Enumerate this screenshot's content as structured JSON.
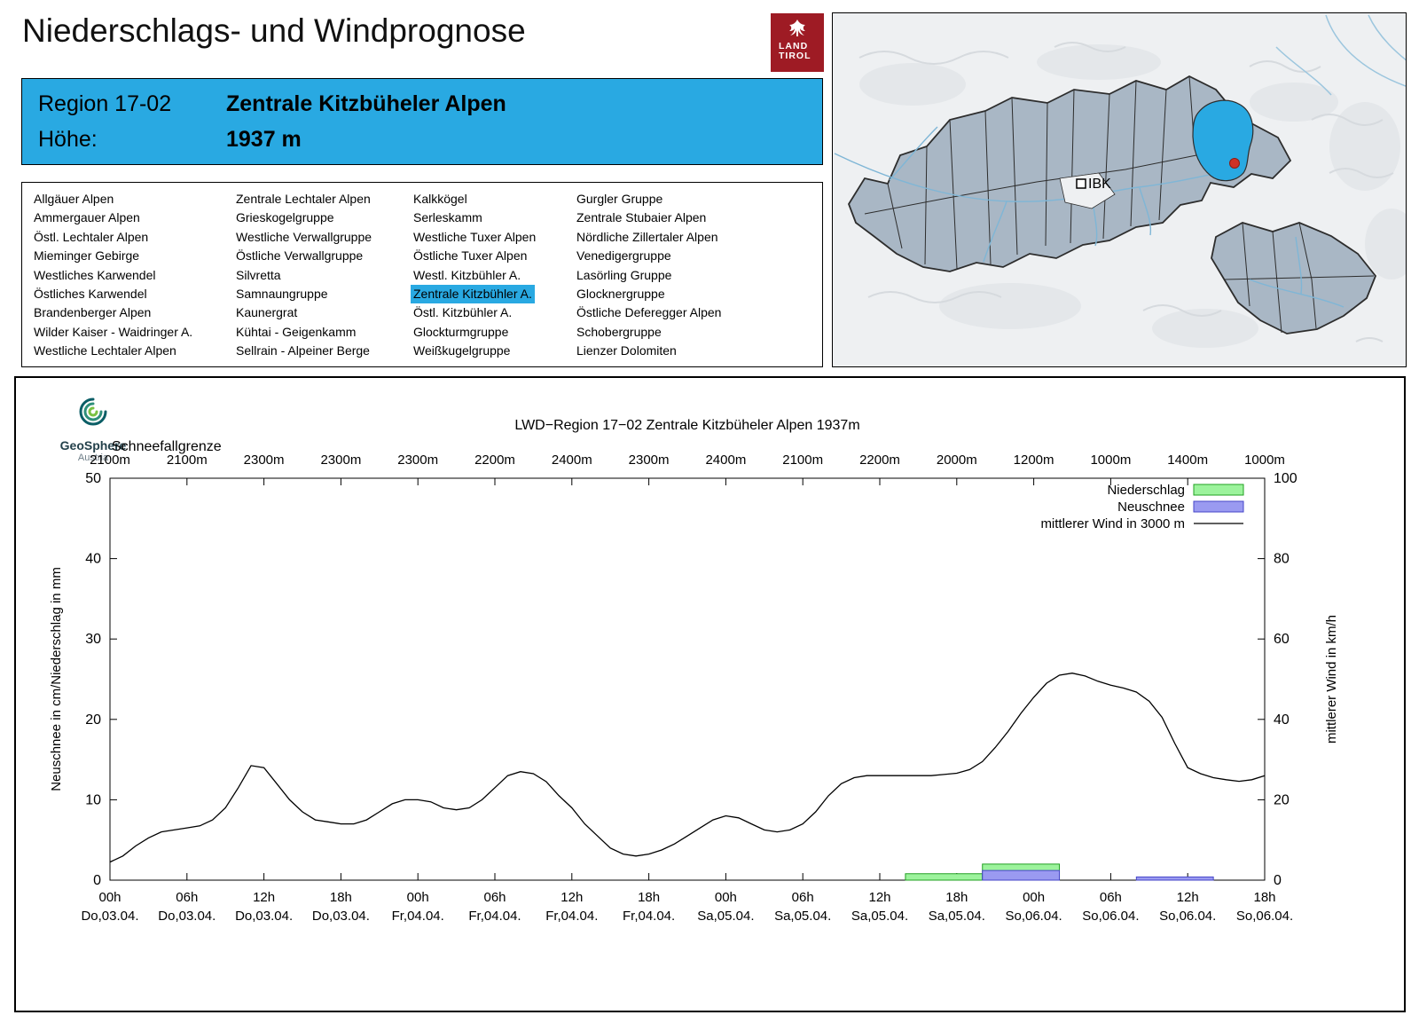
{
  "page": {
    "title": "Niederschlags- und Windprognose"
  },
  "logo": {
    "line1": "LAND",
    "line2": "TIROL"
  },
  "colors": {
    "accent": "#29a9e2",
    "logo_red": "#9e1b24",
    "map_region_fill": "#a9b7c5",
    "map_border": "#2d2d2d",
    "river": "#7fb6d6"
  },
  "region_header": {
    "region_label": "Region 17-02",
    "region_name": "Zentrale Kitzbüheler Alpen",
    "altitude_label": "Höhe:",
    "altitude_value": "1937 m"
  },
  "region_list": {
    "selected": "Zentrale Kitzbühler A.",
    "columns": [
      [
        "Allgäuer Alpen",
        "Ammergauer Alpen",
        "Östl. Lechtaler Alpen",
        "Mieminger Gebirge",
        "Westliches Karwendel",
        "Östliches Karwendel",
        "Brandenberger Alpen",
        "Wilder Kaiser - Waidringer A.",
        "Westliche Lechtaler Alpen"
      ],
      [
        "Zentrale Lechtaler Alpen",
        "Grieskogelgruppe",
        "Westliche Verwallgruppe",
        "Östliche Verwallgruppe",
        "Silvretta",
        "Samnaungruppe",
        "Kaunergrat",
        "Kühtai - Geigenkamm",
        "Sellrain - Alpeiner Berge"
      ],
      [
        "Kalkkögel",
        "Serleskamm",
        "Westliche Tuxer Alpen",
        "Östliche Tuxer Alpen",
        "Westl. Kitzbühler A.",
        "Zentrale Kitzbühler A.",
        "Östl. Kitzbühler A.",
        "Glockturmgruppe",
        "Weißkugelgruppe"
      ],
      [
        "Gurgler Gruppe",
        "Zentrale Stubaier Alpen",
        "Nördliche Zillertaler Alpen",
        "Venedigergruppe",
        "Lasörling Gruppe",
        "Glocknergruppe",
        "Östliche Deferegger Alpen",
        "Schobergruppe",
        "Lienzer Dolomiten"
      ]
    ]
  },
  "map": {
    "city_label": "IBK"
  },
  "geosphere": {
    "name": "GeoSphere",
    "sub": "Austria"
  },
  "chart_data": {
    "type": "line+bars",
    "title": "LWD−Region 17−02 Zentrale Kitzbüheler Alpen 1937m",
    "axes": {
      "ylabel_left": "Neuschnee in cm/Niederschlag in mm",
      "ylabel_right": "mittlerer Wind in km/h",
      "ylim_left": [
        0,
        50
      ],
      "yticks_left": [
        0,
        10,
        20,
        30,
        40,
        50
      ],
      "ylim_right": [
        0,
        100
      ],
      "yticks_right": [
        0,
        20,
        40,
        60,
        80,
        100
      ],
      "xlim_hours": [
        0,
        90
      ]
    },
    "xticks": [
      {
        "hour": 0,
        "time": "00h",
        "date": "Do,03.04."
      },
      {
        "hour": 6,
        "time": "06h",
        "date": "Do,03.04."
      },
      {
        "hour": 12,
        "time": "12h",
        "date": "Do,03.04."
      },
      {
        "hour": 18,
        "time": "18h",
        "date": "Do,03.04."
      },
      {
        "hour": 24,
        "time": "00h",
        "date": "Fr,04.04."
      },
      {
        "hour": 30,
        "time": "06h",
        "date": "Fr,04.04."
      },
      {
        "hour": 36,
        "time": "12h",
        "date": "Fr,04.04."
      },
      {
        "hour": 42,
        "time": "18h",
        "date": "Fr,04.04."
      },
      {
        "hour": 48,
        "time": "00h",
        "date": "Sa,05.04."
      },
      {
        "hour": 54,
        "time": "06h",
        "date": "Sa,05.04."
      },
      {
        "hour": 60,
        "time": "12h",
        "date": "Sa,05.04."
      },
      {
        "hour": 66,
        "time": "18h",
        "date": "Sa,05.04."
      },
      {
        "hour": 72,
        "time": "00h",
        "date": "So,06.04."
      },
      {
        "hour": 78,
        "time": "06h",
        "date": "So,06.04."
      },
      {
        "hour": 84,
        "time": "12h",
        "date": "So,06.04."
      },
      {
        "hour": 90,
        "time": "18h",
        "date": "So,06.04."
      }
    ],
    "schneefallgrenze": {
      "label": "Schneefallgrenze",
      "values": [
        "2100m",
        "2100m",
        "2300m",
        "2300m",
        "2300m",
        "2200m",
        "2400m",
        "2300m",
        "2400m",
        "2100m",
        "2200m",
        "2000m",
        "1200m",
        "1000m",
        "1400m",
        "1000m"
      ]
    },
    "legend": [
      {
        "key": "precip",
        "label": "Niederschlag"
      },
      {
        "key": "snow",
        "label": "Neuschnee"
      },
      {
        "key": "wind",
        "label": "mittlerer Wind in 3000 m"
      }
    ],
    "colors": {
      "precip_fill": "#9cf39c",
      "precip_stroke": "#22a022",
      "snow_fill": "#9a9af1",
      "snow_stroke": "#4646c8",
      "wind": "#000000"
    },
    "precip_bars_mm": [
      {
        "from_h": 62,
        "to_h": 68,
        "value": 0.8
      },
      {
        "from_h": 68,
        "to_h": 74,
        "value": 2.0
      }
    ],
    "snow_bars_cm": [
      {
        "from_h": 68,
        "to_h": 74,
        "value": 1.2
      },
      {
        "from_h": 80,
        "to_h": 86,
        "value": 0.4
      }
    ],
    "wind_kmh": {
      "name": "mittlerer Wind in 3000 m",
      "start_hour": 0,
      "step_hours": 1,
      "values": [
        4.5,
        6,
        8.5,
        10.5,
        12,
        12.5,
        13,
        13.5,
        15,
        18,
        23,
        28.5,
        28,
        24,
        20,
        17,
        15,
        14.5,
        14,
        14,
        15,
        17,
        19,
        20,
        20,
        19.5,
        18,
        17.5,
        18,
        20,
        23,
        26,
        27,
        26.5,
        24.5,
        21,
        18,
        14,
        11,
        8,
        6.5,
        6,
        6.5,
        7.5,
        9,
        11,
        13,
        15,
        16,
        15.5,
        14,
        12.5,
        12,
        12.5,
        14,
        17,
        21,
        24,
        25.5,
        26,
        26,
        26,
        26,
        26,
        26,
        26.3,
        26.6,
        27.5,
        29.5,
        33,
        37,
        41.5,
        45.5,
        49,
        51,
        51.5,
        50.8,
        49.5,
        48.5,
        47.8,
        46.8,
        44.5,
        40.5,
        34,
        28,
        26.5,
        25.5,
        25,
        24.6,
        25,
        26
      ]
    }
  }
}
